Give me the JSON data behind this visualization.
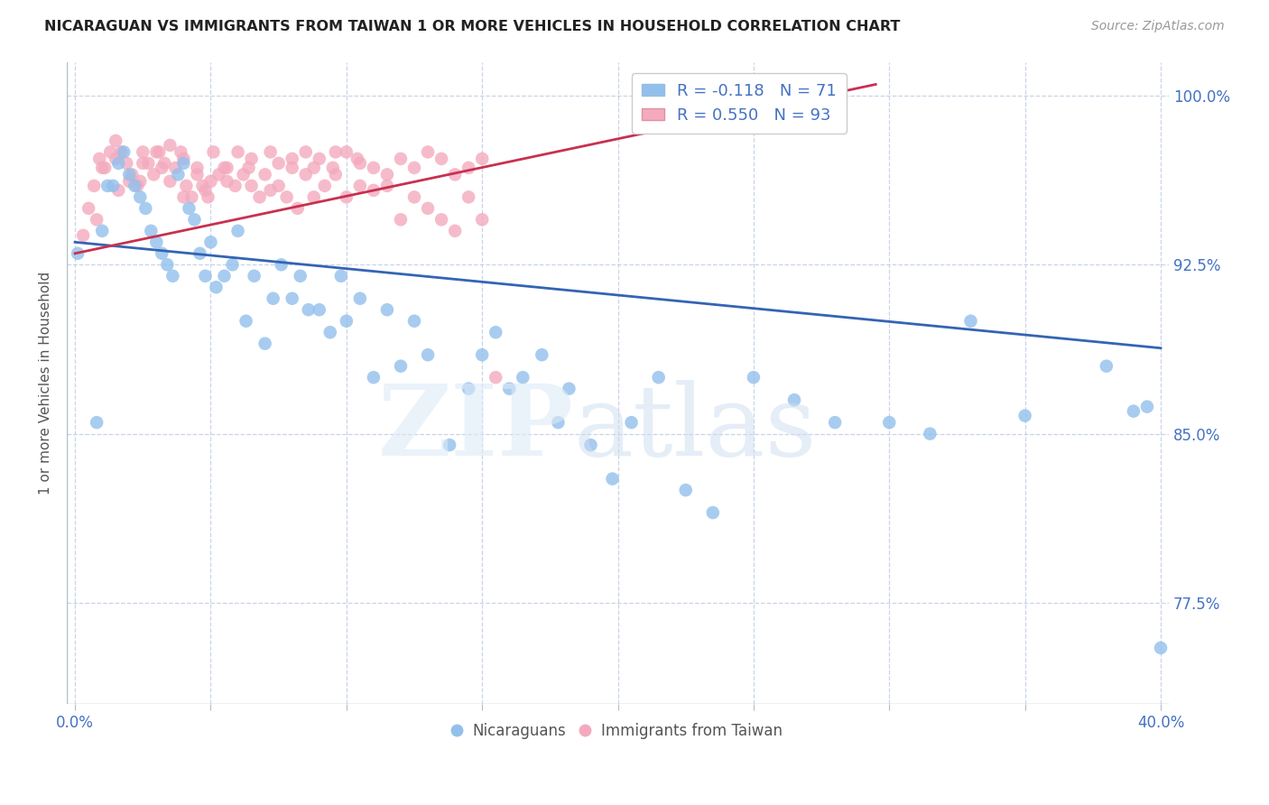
{
  "title": "NICARAGUAN VS IMMIGRANTS FROM TAIWAN 1 OR MORE VEHICLES IN HOUSEHOLD CORRELATION CHART",
  "source": "Source: ZipAtlas.com",
  "ylabel": "1 or more Vehicles in Household",
  "ylim": [
    0.73,
    1.015
  ],
  "xlim": [
    -0.003,
    0.403
  ],
  "ytick_vals": [
    0.775,
    0.85,
    0.925,
    1.0
  ],
  "ytick_labs": [
    "77.5%",
    "85.0%",
    "92.5%",
    "100.0%"
  ],
  "xticks": [
    0.0,
    0.05,
    0.1,
    0.15,
    0.2,
    0.25,
    0.3,
    0.35,
    0.4
  ],
  "nicaraguan_color": "#92C0EC",
  "taiwan_color": "#F4AABE",
  "trend_blue": "#3464B4",
  "trend_pink": "#C83050",
  "legend_R_blue": "-0.118",
  "legend_N_blue": "71",
  "legend_R_pink": "0.550",
  "legend_N_pink": "93",
  "blue_trend_x": [
    0.0,
    0.4
  ],
  "blue_trend_y": [
    0.935,
    0.888
  ],
  "pink_trend_x": [
    0.0,
    0.295
  ],
  "pink_trend_y": [
    0.93,
    1.005
  ],
  "nicaraguan_x": [
    0.001,
    0.008,
    0.01,
    0.012,
    0.014,
    0.016,
    0.018,
    0.02,
    0.022,
    0.024,
    0.026,
    0.028,
    0.03,
    0.032,
    0.034,
    0.036,
    0.038,
    0.04,
    0.042,
    0.044,
    0.046,
    0.048,
    0.05,
    0.052,
    0.055,
    0.058,
    0.06,
    0.063,
    0.066,
    0.07,
    0.073,
    0.076,
    0.08,
    0.083,
    0.086,
    0.09,
    0.094,
    0.098,
    0.1,
    0.105,
    0.11,
    0.115,
    0.12,
    0.125,
    0.13,
    0.138,
    0.145,
    0.15,
    0.155,
    0.16,
    0.165,
    0.172,
    0.178,
    0.182,
    0.19,
    0.198,
    0.205,
    0.215,
    0.225,
    0.235,
    0.25,
    0.265,
    0.28,
    0.3,
    0.315,
    0.33,
    0.35,
    0.38,
    0.39,
    0.395,
    0.4
  ],
  "nicaraguan_y": [
    0.93,
    0.855,
    0.94,
    0.96,
    0.96,
    0.97,
    0.975,
    0.965,
    0.96,
    0.955,
    0.95,
    0.94,
    0.935,
    0.93,
    0.925,
    0.92,
    0.965,
    0.97,
    0.95,
    0.945,
    0.93,
    0.92,
    0.935,
    0.915,
    0.92,
    0.925,
    0.94,
    0.9,
    0.92,
    0.89,
    0.91,
    0.925,
    0.91,
    0.92,
    0.905,
    0.905,
    0.895,
    0.92,
    0.9,
    0.91,
    0.875,
    0.905,
    0.88,
    0.9,
    0.885,
    0.845,
    0.87,
    0.885,
    0.895,
    0.87,
    0.875,
    0.885,
    0.855,
    0.87,
    0.845,
    0.83,
    0.855,
    0.875,
    0.825,
    0.815,
    0.875,
    0.865,
    0.855,
    0.855,
    0.85,
    0.9,
    0.858,
    0.88,
    0.86,
    0.862,
    0.755
  ],
  "taiwan_x": [
    0.003,
    0.007,
    0.009,
    0.011,
    0.013,
    0.015,
    0.017,
    0.019,
    0.021,
    0.023,
    0.025,
    0.027,
    0.029,
    0.031,
    0.033,
    0.035,
    0.037,
    0.039,
    0.041,
    0.043,
    0.045,
    0.047,
    0.049,
    0.051,
    0.053,
    0.056,
    0.059,
    0.062,
    0.065,
    0.068,
    0.072,
    0.075,
    0.078,
    0.082,
    0.085,
    0.088,
    0.092,
    0.096,
    0.1,
    0.105,
    0.11,
    0.115,
    0.12,
    0.125,
    0.13,
    0.135,
    0.14,
    0.145,
    0.15,
    0.155,
    0.005,
    0.01,
    0.015,
    0.02,
    0.025,
    0.03,
    0.035,
    0.04,
    0.045,
    0.05,
    0.055,
    0.06,
    0.065,
    0.07,
    0.075,
    0.08,
    0.085,
    0.09,
    0.095,
    0.1,
    0.105,
    0.11,
    0.115,
    0.12,
    0.125,
    0.13,
    0.135,
    0.14,
    0.145,
    0.15,
    0.008,
    0.016,
    0.024,
    0.032,
    0.04,
    0.048,
    0.056,
    0.064,
    0.072,
    0.08,
    0.088,
    0.096,
    0.104
  ],
  "taiwan_y": [
    0.938,
    0.96,
    0.972,
    0.968,
    0.975,
    0.98,
    0.975,
    0.97,
    0.965,
    0.96,
    0.975,
    0.97,
    0.965,
    0.975,
    0.97,
    0.962,
    0.968,
    0.975,
    0.96,
    0.955,
    0.965,
    0.96,
    0.955,
    0.975,
    0.965,
    0.968,
    0.96,
    0.965,
    0.96,
    0.955,
    0.958,
    0.96,
    0.955,
    0.95,
    0.965,
    0.955,
    0.96,
    0.965,
    0.955,
    0.96,
    0.958,
    0.96,
    0.945,
    0.955,
    0.95,
    0.945,
    0.94,
    0.955,
    0.945,
    0.875,
    0.95,
    0.968,
    0.972,
    0.962,
    0.97,
    0.975,
    0.978,
    0.972,
    0.968,
    0.962,
    0.968,
    0.975,
    0.972,
    0.965,
    0.97,
    0.968,
    0.975,
    0.972,
    0.968,
    0.975,
    0.97,
    0.968,
    0.965,
    0.972,
    0.968,
    0.975,
    0.972,
    0.965,
    0.968,
    0.972,
    0.945,
    0.958,
    0.962,
    0.968,
    0.955,
    0.958,
    0.962,
    0.968,
    0.975,
    0.972,
    0.968,
    0.975,
    0.972
  ]
}
